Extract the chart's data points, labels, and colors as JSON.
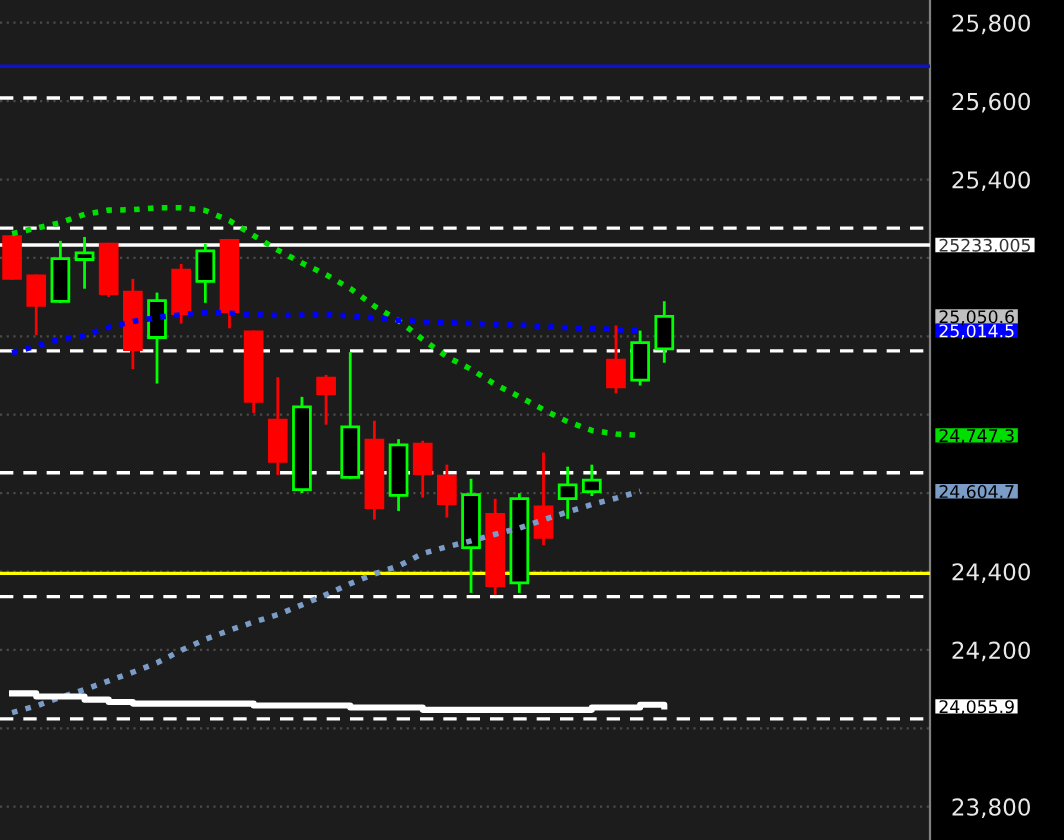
{
  "chart_data": {
    "type": "candlestick",
    "categories": [
      null,
      null,
      null,
      null,
      null,
      null,
      null,
      null,
      null,
      null,
      null,
      null,
      null,
      null,
      null,
      null,
      null,
      null,
      null,
      null,
      null,
      null,
      null,
      null,
      null,
      null,
      null,
      null
    ],
    "ohlc": [
      [
        25254,
        25254,
        25148,
        25148
      ],
      [
        25154,
        25154,
        25007,
        25079
      ],
      [
        25089,
        25240,
        25089,
        25198
      ],
      [
        25196,
        25250,
        25125,
        25213
      ],
      [
        25235,
        25235,
        25104,
        25109
      ],
      [
        25113,
        25143,
        24920,
        24966
      ],
      [
        24997,
        25108,
        24883,
        25091
      ],
      [
        25169,
        25181,
        25036,
        25058
      ],
      [
        25140,
        25232,
        25089,
        25218
      ],
      [
        25245,
        25245,
        25024,
        25063
      ],
      [
        25011,
        25011,
        24808,
        24834
      ],
      [
        24786,
        24892,
        24650,
        24681
      ],
      [
        24609,
        24842,
        24604,
        24820
      ],
      [
        24893,
        24898,
        24778,
        24854
      ],
      [
        24640,
        24956,
        24640,
        24769
      ],
      [
        24735,
        24781,
        24536,
        24563
      ],
      [
        24594,
        24734,
        24558,
        24723
      ],
      [
        24725,
        24730,
        24592,
        24650
      ],
      [
        24643,
        24669,
        24541,
        24573
      ],
      [
        24461,
        24633,
        24349,
        24596
      ],
      [
        24546,
        24582,
        24344,
        24364
      ],
      [
        24371,
        24596,
        24349,
        24586
      ],
      [
        24565,
        24700,
        24471,
        24487
      ],
      [
        24586,
        24664,
        24538,
        24621
      ],
      [
        24604,
        24669,
        24596,
        24633
      ],
      [
        24939,
        25024,
        24858,
        24871
      ],
      [
        24888,
        25011,
        24878,
        24984
      ],
      [
        24968,
        25086,
        24936,
        25050.6
      ]
    ],
    "colors": [
      "#ff0000",
      "#ff0000",
      "#00ff00",
      "#00ff00",
      "#ff0000",
      "#ff0000",
      "#00ff00",
      "#ff0000",
      "#00ff00",
      "#ff0000",
      "#ff0000",
      "#ff0000",
      "#00ff00",
      "#ff0000",
      "#00ff00",
      "#ff0000",
      "#00ff00",
      "#ff0000",
      "#ff0000",
      "#00ff00",
      "#ff0000",
      "#00ff00",
      "#ff0000",
      "#00ff00",
      "#00ff00",
      "#ff0000",
      "#00ff00",
      "#00ff00"
    ],
    "series": [
      {
        "type": "line",
        "color": "#00e000",
        "line_style": "dotted",
        "values": [
          25262,
          25276,
          25290,
          25311,
          25322,
          25323,
          25328,
          25328,
          25321,
          25295,
          25257,
          25220,
          25187,
          25157,
          25122,
          25077,
          25040,
          24992,
          24948,
          24916,
          24877,
          24846,
          24813,
          24782,
          24760,
          24751,
          24747.3,
          null
        ]
      },
      {
        "type": "line",
        "color": "#0000ff",
        "line_style": "dotted",
        "values": [
          24958,
          24975,
          24993,
          25002,
          25023,
          25038,
          25048,
          25055,
          25061,
          25059,
          25056,
          25053,
          25054,
          25056,
          25052,
          25047,
          25041,
          25037,
          25035,
          25033,
          25031,
          25029,
          25025,
          25022,
          25020,
          25017,
          25014.5,
          null
        ]
      },
      {
        "type": "line",
        "color": "#7a9cc6",
        "line_style": "dotted",
        "values": [
          24040,
          24057,
          24079,
          24099,
          24121,
          24143,
          24167,
          24199,
          24227,
          24250,
          24271,
          24290,
          24315,
          24341,
          24369,
          24394,
          24414,
          24446,
          24463,
          24478,
          24495,
          24511,
          24532,
          24552,
          24571,
          24587,
          24604.7,
          null
        ]
      },
      {
        "type": "step",
        "color": "#ffffff",
        "line_style": "solid",
        "values": [
          24089,
          24081,
          24081,
          24073,
          24067,
          24063,
          24063,
          24063,
          24063,
          24063,
          24058,
          24058,
          24058,
          24058,
          24053,
          24053,
          24053,
          24047,
          24047,
          24047,
          24047,
          24047,
          24047,
          24047,
          24053,
          24053,
          24060,
          24055.9
        ]
      }
    ],
    "ref_lines": [
      {
        "axis": "y",
        "value": 25689,
        "color": "#1010d0",
        "line_style": "solid"
      },
      {
        "axis": "y",
        "value": 24395,
        "color": "#ffff00",
        "line_style": "solid"
      },
      {
        "axis": "y",
        "value": 25608,
        "color": "#ffffff",
        "line_style": "dashed"
      },
      {
        "axis": "y",
        "value": 25276,
        "color": "#ffffff",
        "line_style": "dashed"
      },
      {
        "axis": "y",
        "value": 24963,
        "color": "#ffffff",
        "line_style": "dashed"
      },
      {
        "axis": "y",
        "value": 24652,
        "color": "#ffffff",
        "line_style": "dashed"
      },
      {
        "axis": "y",
        "value": 24336,
        "color": "#ffffff",
        "line_style": "dashed"
      },
      {
        "axis": "y",
        "value": 24024,
        "color": "#ffffff",
        "line_style": "dashed"
      },
      {
        "axis": "y",
        "value": 25233.005,
        "color": "#ffffff",
        "line_style": "solid"
      }
    ],
    "y2lim": [
      23715,
      25858
    ],
    "y2ticks": [
      {
        "value": 25233.005,
        "label": "25233.005"
      },
      {
        "value": 25050.6,
        "label": "25,050.6"
      },
      {
        "value": 25014.5,
        "label": "25,014.5"
      },
      {
        "value": 24747.3,
        "label": "24,747.3"
      },
      {
        "value": 24604.7,
        "label": "24,604.7"
      },
      {
        "value": 24055.9,
        "label": "24,055.9"
      }
    ],
    "ylim": [
      23715,
      25858
    ],
    "yticks": [
      {
        "value": 25800,
        "label": "25,800"
      },
      {
        "value": 25600,
        "label": "25,600"
      },
      {
        "value": 25400,
        "label": "25,400"
      },
      {
        "value": 25200,
        "label": null
      },
      {
        "value": 25000,
        "label": null
      },
      {
        "value": 24800,
        "label": null
      },
      {
        "value": 24600,
        "label": null
      },
      {
        "value": 24400,
        "label": "24,400"
      },
      {
        "value": 24200,
        "label": "24,200"
      },
      {
        "value": 24000,
        "label": null
      },
      {
        "value": 23800,
        "label": "23,800"
      }
    ],
    "grid": "y",
    "tick_labels": "y"
  }
}
